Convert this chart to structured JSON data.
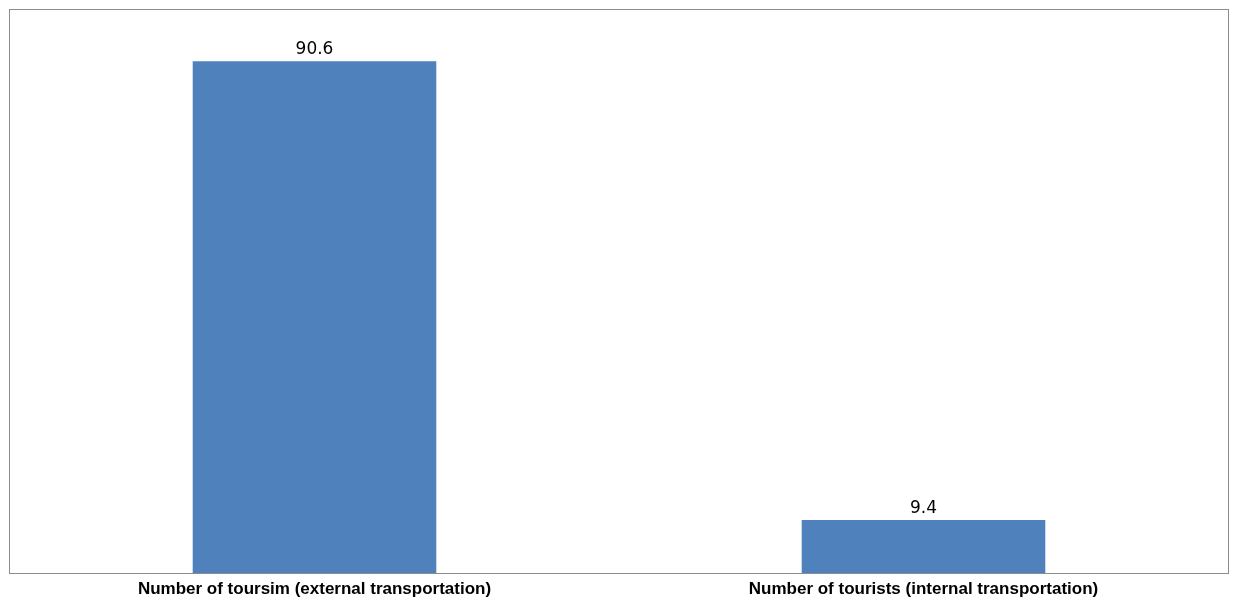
{
  "chart_data": {
    "type": "bar",
    "categories": [
      "Number of toursim (external transportation)",
      "Number of tourists (internal transportation)"
    ],
    "values": [
      90.6,
      9.4
    ],
    "color": "#4f81bd",
    "data_labels": true
  }
}
